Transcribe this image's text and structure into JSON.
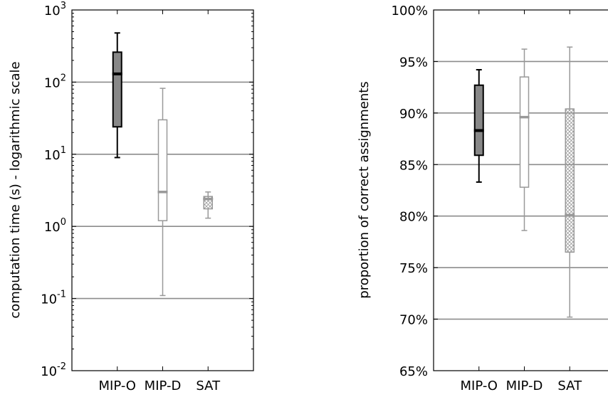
{
  "chart_data": [
    {
      "type": "box",
      "ylabel": "computation time (s) - logarithmic scale",
      "yscale": "log",
      "ylim": [
        0.01,
        1000
      ],
      "yticks": [
        {
          "value": 0.01,
          "base": "10",
          "exp": "-2"
        },
        {
          "value": 0.1,
          "base": "10",
          "exp": "-1"
        },
        {
          "value": 1,
          "base": "10",
          "exp": "0"
        },
        {
          "value": 10,
          "base": "10",
          "exp": "1"
        },
        {
          "value": 100,
          "base": "10",
          "exp": "2"
        },
        {
          "value": 1000,
          "base": "10",
          "exp": "3"
        }
      ],
      "grid": true,
      "categories": [
        "MIP-O",
        "MIP-D",
        "SAT"
      ],
      "boxes": [
        {
          "category": "MIP-O",
          "whisker_low": 9,
          "q1": 24,
          "median": 130,
          "q3": 260,
          "whisker_high": 480,
          "style": "filled",
          "color": "#888888",
          "stroke": "#000000"
        },
        {
          "category": "MIP-D",
          "whisker_low": 0.11,
          "q1": 1.2,
          "median": 3.0,
          "q3": 30,
          "whisker_high": 82,
          "style": "open",
          "color": "#ffffff",
          "stroke": "#999999"
        },
        {
          "category": "SAT",
          "whisker_low": 1.3,
          "q1": 1.75,
          "median": 2.4,
          "q3": 2.6,
          "whisker_high": 3.0,
          "style": "hatched",
          "color": "#ffffff",
          "stroke": "#999999"
        }
      ]
    },
    {
      "type": "box",
      "ylabel": "proportion of correct assignments",
      "ylim": [
        65,
        100
      ],
      "yticks": [
        "65%",
        "70%",
        "75%",
        "80%",
        "85%",
        "90%",
        "95%",
        "100%"
      ],
      "grid": true,
      "categories": [
        "MIP-O",
        "MIP-D",
        "SAT"
      ],
      "boxes": [
        {
          "category": "MIP-O",
          "whisker_low": 83.3,
          "q1": 85.9,
          "median": 88.3,
          "q3": 92.7,
          "whisker_high": 94.2,
          "style": "filled",
          "color": "#888888",
          "stroke": "#000000"
        },
        {
          "category": "MIP-D",
          "whisker_low": 78.6,
          "q1": 82.8,
          "median": 89.6,
          "q3": 93.5,
          "whisker_high": 96.2,
          "style": "open",
          "color": "#ffffff",
          "stroke": "#999999"
        },
        {
          "category": "SAT",
          "whisker_low": 70.2,
          "q1": 76.5,
          "median": 80.1,
          "q3": 90.4,
          "whisker_high": 96.4,
          "style": "hatched",
          "color": "#ffffff",
          "stroke": "#999999"
        }
      ]
    }
  ]
}
